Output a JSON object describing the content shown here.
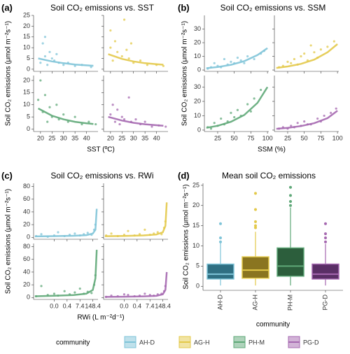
{
  "chart_data": [
    {
      "type": "scatter",
      "label": "(a)",
      "title": "Soil CO₂ emissions vs. SST",
      "xlabel": "SST (ºC)",
      "ylabel": "Soil CO₂ emissions (μmol m⁻²s⁻¹)",
      "xlim": [
        17,
        45
      ],
      "xticks": [
        20,
        25,
        30,
        35,
        40
      ],
      "rows": [
        {
          "ylim": [
            -1,
            25
          ],
          "yticks": [
            0,
            5,
            10,
            15,
            20,
            25
          ]
        },
        {
          "ylim": [
            -1,
            22
          ],
          "yticks": [
            0,
            5,
            10,
            15,
            20
          ]
        }
      ],
      "series": [
        {
          "name": "AH-D",
          "color": "#7fc4d8",
          "x": [
            20,
            21,
            22,
            22,
            23,
            24,
            25,
            26,
            27,
            28,
            30,
            32,
            35,
            38,
            42
          ],
          "y": [
            3,
            12,
            6,
            15,
            2,
            8,
            5,
            4,
            7,
            3,
            2,
            3,
            1.5,
            2,
            1
          ],
          "fit_x": [
            19,
            25,
            30,
            35,
            40,
            43
          ],
          "fit_y": [
            5,
            3.6,
            2.8,
            2.2,
            1.8,
            1.6
          ]
        },
        {
          "name": "AG-H",
          "color": "#e3c94a",
          "x": [
            20,
            20,
            21,
            22,
            23,
            25,
            26,
            27,
            28,
            29,
            30,
            33,
            36,
            40,
            43
          ],
          "y": [
            18,
            10,
            4,
            13,
            8,
            6,
            23,
            9,
            5,
            12,
            3,
            4,
            2,
            2,
            1.5
          ],
          "fit_x": [
            19,
            25,
            30,
            35,
            40,
            43
          ],
          "fit_y": [
            7,
            4.8,
            3.6,
            2.8,
            2.3,
            2.1
          ]
        },
        {
          "name": "PH-M",
          "color": "#5fa878",
          "x": [
            19,
            20,
            21,
            22,
            23,
            24,
            25,
            27,
            28,
            30,
            32,
            35,
            38,
            41,
            44
          ],
          "y": [
            12,
            20,
            7,
            14,
            3,
            9,
            5,
            10,
            4,
            6,
            3,
            5,
            2,
            3,
            2
          ],
          "fit_x": [
            19,
            25,
            30,
            35,
            40,
            43
          ],
          "fit_y": [
            8.5,
            5.5,
            4,
            3,
            2.4,
            2.1
          ]
        },
        {
          "name": "PG-D",
          "color": "#a568b0",
          "x": [
            20,
            21,
            22,
            23,
            24,
            25,
            26,
            28,
            29,
            31,
            33,
            35,
            38,
            41,
            44
          ],
          "y": [
            6,
            10,
            3,
            8,
            2,
            5,
            4,
            13,
            3,
            4,
            2,
            3,
            1,
            1.5,
            1
          ],
          "fit_x": [
            19,
            25,
            30,
            35,
            40,
            43
          ],
          "fit_y": [
            5,
            3.5,
            2.6,
            2,
            1.6,
            1.4
          ]
        }
      ]
    },
    {
      "type": "scatter",
      "label": "(b)",
      "title": "Soil CO₂ emissions vs. SSM",
      "xlabel": "SSM (%)",
      "ylabel": "Soil CO₂ emissions (μmol m⁻²s⁻¹)",
      "xlim": [
        5,
        102
      ],
      "xticks": [
        25,
        50,
        75,
        100
      ],
      "rows": [
        {
          "ylim": [
            -1,
            40
          ],
          "yticks": [
            0,
            10,
            20,
            30
          ]
        },
        {
          "ylim": [
            -1,
            38
          ],
          "yticks": [
            0,
            10,
            20,
            30
          ]
        }
      ],
      "series": [
        {
          "name": "AH-D",
          "color": "#7fc4d8",
          "x": [
            10,
            15,
            20,
            25,
            30,
            35,
            40,
            45,
            50,
            55,
            60,
            65,
            70,
            80,
            90,
            95
          ],
          "y": [
            1,
            2,
            5,
            3,
            2,
            8,
            4,
            6,
            5,
            9,
            7,
            5,
            10,
            8,
            12,
            14
          ],
          "fit_x": [
            8,
            25,
            45,
            65,
            85,
            100
          ],
          "fit_y": [
            1.3,
            2.2,
            3.8,
            6.5,
            11,
            16
          ]
        },
        {
          "name": "AG-H",
          "color": "#e3c94a",
          "x": [
            12,
            18,
            25,
            30,
            35,
            40,
            45,
            50,
            55,
            60,
            65,
            70,
            75,
            85,
            95
          ],
          "y": [
            2,
            3,
            6,
            5,
            8,
            4,
            10,
            12,
            7,
            18,
            13,
            9,
            15,
            17,
            21
          ],
          "fit_x": [
            8,
            25,
            45,
            65,
            85,
            100
          ],
          "fit_y": [
            1.5,
            2.6,
            4.5,
            7.6,
            13,
            19
          ]
        },
        {
          "name": "PH-M",
          "color": "#5fa878",
          "x": [
            10,
            15,
            20,
            25,
            30,
            35,
            40,
            45,
            50,
            55,
            60,
            70,
            75,
            80,
            90
          ],
          "y": [
            2,
            1,
            5,
            3,
            8,
            4,
            6,
            12,
            9,
            14,
            10,
            18,
            13,
            22,
            28
          ],
          "fit_x": [
            8,
            25,
            45,
            65,
            85,
            100
          ],
          "fit_y": [
            1.6,
            3,
            5.8,
            10.5,
            19,
            30
          ]
        },
        {
          "name": "PG-D",
          "color": "#a568b0",
          "x": [
            12,
            18,
            25,
            30,
            35,
            40,
            45,
            50,
            55,
            60,
            70,
            75,
            80,
            90,
            98
          ],
          "y": [
            1,
            2,
            1,
            3,
            2,
            5,
            3,
            6,
            4,
            4,
            8,
            6,
            10,
            12,
            15
          ],
          "fit_x": [
            8,
            25,
            45,
            65,
            85,
            100
          ],
          "fit_y": [
            0.9,
            1.6,
            2.8,
            4.8,
            8.3,
            13.5
          ]
        }
      ]
    },
    {
      "type": "scatter",
      "label": "(c)",
      "title": "Soil CO₂ emissions vs. RWi",
      "xlabel": "RWi (L m⁻²d⁻¹)",
      "ylabel": "Soil CO₂ emissions (μmol m⁻²s⁻¹)",
      "xlim": [
        -1.6,
        3.4
      ],
      "xticks": [
        {
          "value": 0,
          "label": "0.0"
        },
        {
          "value": 1,
          "label": "0.4"
        },
        {
          "value": 2,
          "label": "7.4"
        },
        {
          "value": 3,
          "label": "148.4"
        }
      ],
      "rows": [
        {
          "ylim": [
            -3,
            85
          ],
          "yticks": [
            0,
            20,
            40,
            60,
            80
          ]
        },
        {
          "ylim": [
            -3,
            85
          ],
          "yticks": [
            0,
            20,
            40,
            60,
            80
          ]
        }
      ],
      "series": [
        {
          "name": "AH-D",
          "color": "#7fc4d8",
          "x": [
            -1.4,
            -1,
            -0.5,
            0,
            0.3,
            0.8,
            1.2,
            1.6,
            2,
            2.3,
            2.6,
            2.9,
            3.1,
            3.2
          ],
          "y": [
            2,
            5,
            1,
            3,
            8,
            2,
            4,
            6,
            3,
            5,
            7,
            4,
            12,
            20
          ],
          "fit_x": [
            -1.5,
            0,
            1.5,
            2.5,
            3,
            3.2,
            3.3
          ],
          "fit_y": [
            1.5,
            2,
            2.5,
            3.5,
            6,
            12,
            45
          ]
        },
        {
          "name": "AG-H",
          "color": "#e3c94a",
          "x": [
            -1.4,
            -1,
            -0.5,
            0,
            0.3,
            0.8,
            1.2,
            1.6,
            2,
            2.3,
            2.6,
            2.9,
            3.1,
            3.2
          ],
          "y": [
            3,
            6,
            2,
            4,
            10,
            3,
            5,
            12,
            4,
            6,
            8,
            5,
            15,
            25
          ],
          "fit_x": [
            -1.5,
            0,
            1.5,
            2.5,
            3,
            3.2,
            3.3
          ],
          "fit_y": [
            1.8,
            2.3,
            3,
            4.5,
            8,
            18,
            55
          ]
        },
        {
          "name": "PH-M",
          "color": "#5fa878",
          "x": [
            -1.4,
            -1,
            -0.5,
            0,
            0.3,
            0.8,
            1.2,
            1.6,
            2,
            2.3,
            2.6,
            2.9,
            3.1,
            3.2
          ],
          "y": [
            2,
            18,
            4,
            6,
            3,
            10,
            5,
            8,
            14,
            6,
            9,
            7,
            20,
            35
          ],
          "fit_x": [
            -1.5,
            0,
            1.5,
            2.5,
            3,
            3.2,
            3.3
          ],
          "fit_y": [
            2,
            2.8,
            3.8,
            6,
            12,
            30,
            75
          ]
        },
        {
          "name": "PG-D",
          "color": "#a568b0",
          "x": [
            -1.4,
            -1,
            -0.5,
            0,
            0.3,
            0.8,
            1.2,
            1.6,
            2,
            2.3,
            2.6,
            2.9,
            3.1,
            3.2
          ],
          "y": [
            1,
            3,
            2,
            5,
            4,
            2,
            3,
            6,
            4,
            3,
            5,
            6,
            10,
            18
          ],
          "fit_x": [
            -1.5,
            0,
            1.5,
            2.5,
            3,
            3.2,
            3.3
          ],
          "fit_y": [
            1,
            1.3,
            1.8,
            2.6,
            5,
            12,
            40
          ]
        }
      ]
    },
    {
      "type": "box",
      "label": "(d)",
      "title": "Mean soil CO₂ emissions",
      "xlabel": "community",
      "ylabel": "Soil CO₂ emissions (μmol m⁻²s⁻¹)",
      "ylim": [
        -1,
        25.5
      ],
      "yticks": [
        0,
        5,
        10,
        15,
        20,
        25
      ],
      "series": [
        {
          "name": "AH-D",
          "color": "#7fc4d8",
          "fill": "#2f6f82",
          "min": 0.2,
          "q1": 1.8,
          "median": 3,
          "q3": 5.5,
          "max": 10.8,
          "outliers": [
            11,
            12,
            15.5
          ]
        },
        {
          "name": "AG-H",
          "color": "#e3c94a",
          "fill": "#8a7520",
          "min": 0.2,
          "q1": 2,
          "median": 4,
          "q3": 7.3,
          "max": 13.5,
          "outliers": [
            14.5,
            15,
            16,
            19,
            23
          ]
        },
        {
          "name": "PH-M",
          "color": "#5fa878",
          "fill": "#2c5e3c",
          "min": 0.2,
          "q1": 2.5,
          "median": 5,
          "q3": 9.5,
          "max": 19.5,
          "outliers": [
            20,
            21,
            22.5,
            24.5
          ]
        },
        {
          "name": "PG-D",
          "color": "#a568b0",
          "fill": "#5a2f66",
          "min": 0.2,
          "q1": 1.8,
          "median": 3,
          "q3": 5.5,
          "max": 10.5,
          "outliers": [
            11,
            12,
            13,
            15.5
          ]
        }
      ]
    }
  ]
}
